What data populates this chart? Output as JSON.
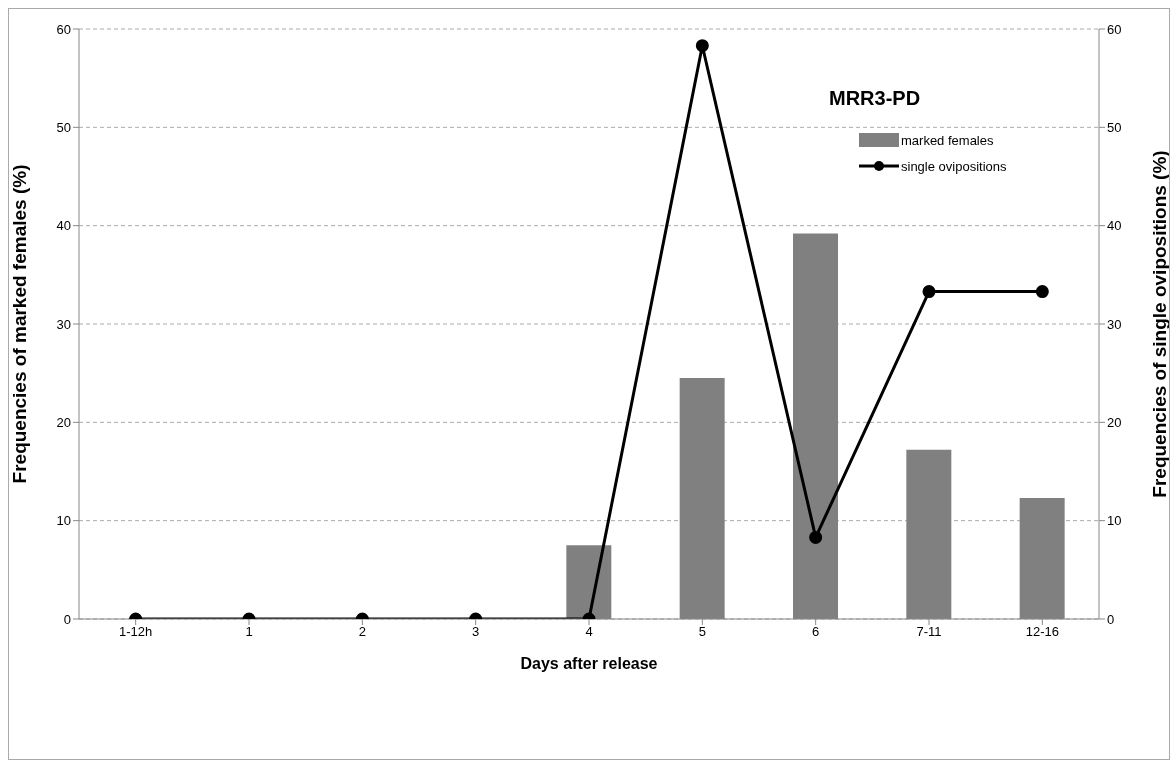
{
  "chart_data": {
    "type": "bar",
    "title": "MRR3-PD",
    "xlabel": "Days after release",
    "ylabel": "Frequencies of marked females (%)",
    "y2label": "Frequencies of single ovipositions (%)",
    "categories": [
      "1-12h",
      "1",
      "2",
      "3",
      "4",
      "5",
      "6",
      "7-11",
      "12-16"
    ],
    "series": [
      {
        "name": "marked females",
        "color": "#808080",
        "values": [
          0,
          0,
          0,
          0,
          7.5,
          24.5,
          39.2,
          17.2,
          12.3
        ]
      },
      {
        "name": "single ovipositions",
        "type": "line",
        "axis": "y2",
        "color": "#000000",
        "values": [
          0,
          0,
          0,
          0,
          0,
          58.3,
          8.3,
          33.3,
          33.3
        ]
      }
    ],
    "ylim": [
      0,
      60
    ],
    "yticks": [
      0,
      10,
      20,
      30,
      40,
      50,
      60
    ],
    "y2lim": [
      0,
      60
    ],
    "y2ticks": [
      0,
      10,
      20,
      30,
      40,
      50,
      60
    ],
    "grid": "y",
    "legend": "top right",
    "marker": "circle",
    "line_style": "solid"
  }
}
